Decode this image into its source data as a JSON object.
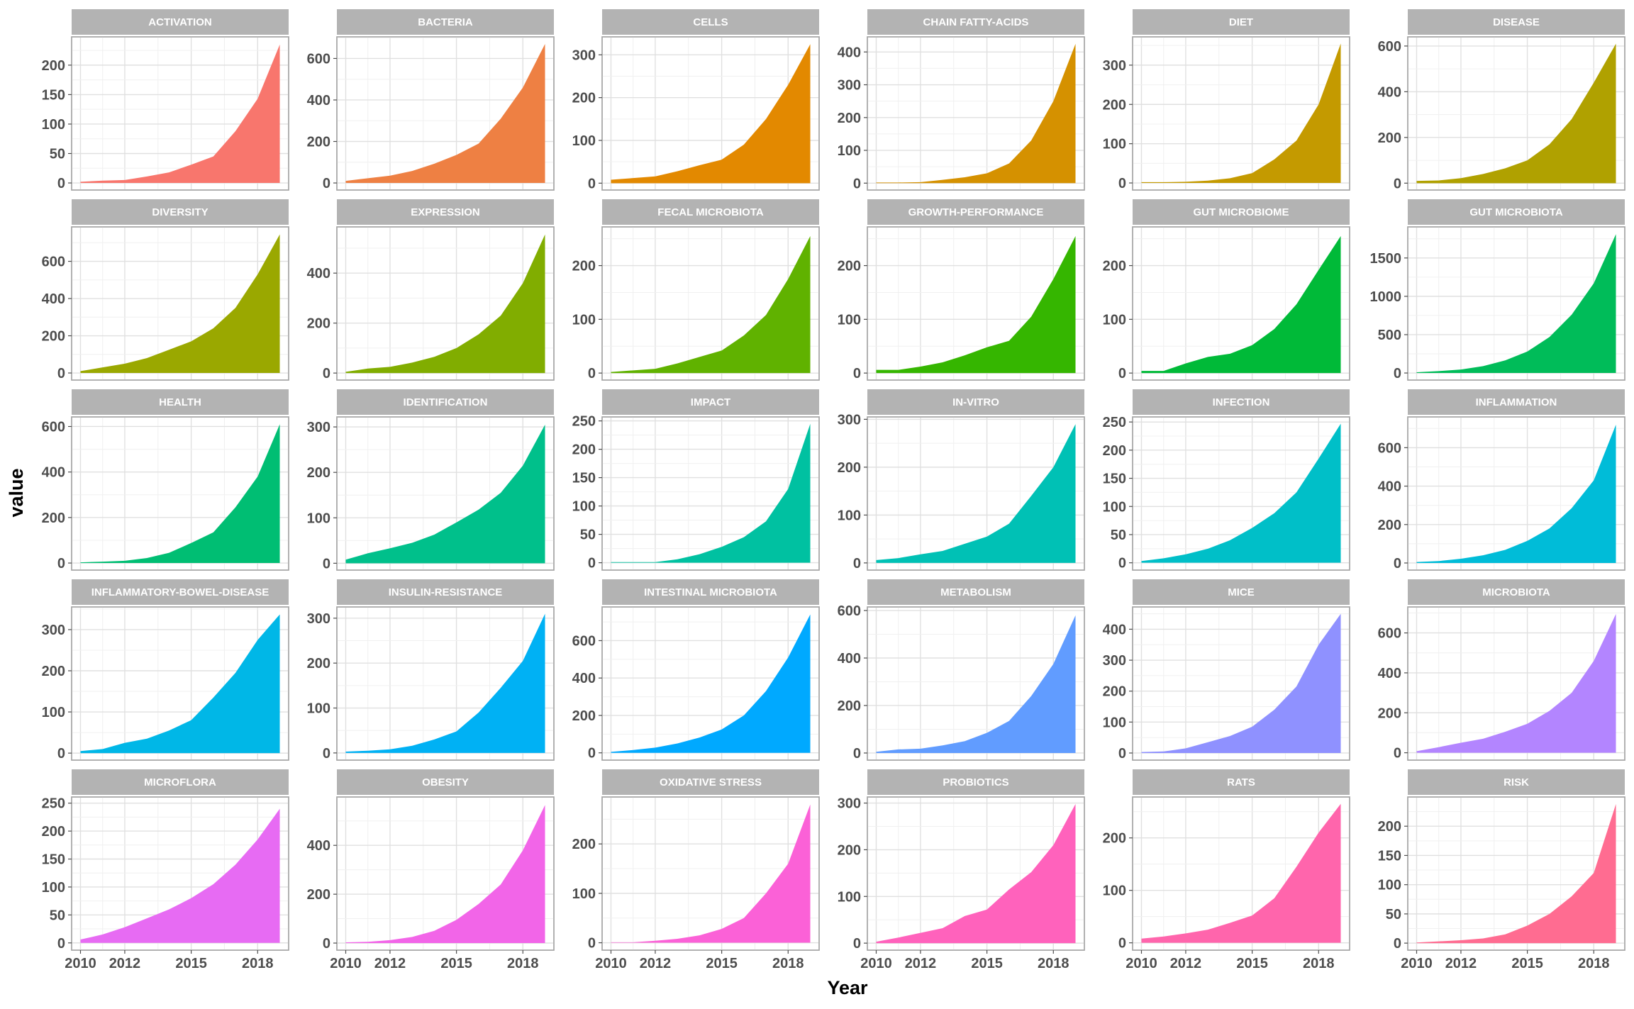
{
  "x_axis_title": "Year",
  "y_axis_title": "value",
  "chart_data": {
    "type": "area",
    "xlabel": "Year",
    "ylabel": "value",
    "x": [
      2010,
      2011,
      2012,
      2013,
      2014,
      2015,
      2016,
      2017,
      2018,
      2019
    ],
    "x_ticks": [
      2010,
      2012,
      2015,
      2018
    ],
    "xlim": [
      2009.6,
      2019.4
    ],
    "grid": true,
    "facets": [
      {
        "title": "ACTIVATION",
        "color": "#F8766D",
        "y_ticks": [
          0,
          50,
          100,
          150,
          200
        ],
        "ylim": [
          -12,
          248
        ],
        "values": [
          2,
          4,
          5,
          11,
          18,
          31,
          45,
          88,
          143,
          235
        ]
      },
      {
        "title": "BACTERIA",
        "color": "#EE8043",
        "y_ticks": [
          0,
          200,
          400,
          600
        ],
        "ylim": [
          -34,
          704
        ],
        "values": [
          10,
          23,
          35,
          58,
          93,
          135,
          190,
          310,
          460,
          670
        ]
      },
      {
        "title": "CELLS",
        "color": "#E38900",
        "y_ticks": [
          0,
          100,
          200,
          300
        ],
        "ylim": [
          -16,
          342
        ],
        "values": [
          8,
          12,
          16,
          28,
          42,
          55,
          90,
          150,
          230,
          325
        ]
      },
      {
        "title": "CHAIN FATTY-ACIDS",
        "color": "#D59100",
        "y_ticks": [
          0,
          100,
          200,
          300,
          400
        ],
        "ylim": [
          -21,
          446
        ],
        "values": [
          2,
          2,
          3,
          10,
          18,
          30,
          60,
          130,
          250,
          425
        ]
      },
      {
        "title": "DIET",
        "color": "#C49A00",
        "y_ticks": [
          0,
          100,
          200,
          300
        ],
        "ylim": [
          -18,
          372
        ],
        "values": [
          2,
          2,
          3,
          6,
          12,
          25,
          60,
          108,
          200,
          355
        ]
      },
      {
        "title": "DISEASE",
        "color": "#B0A100",
        "y_ticks": [
          0,
          200,
          400,
          600
        ],
        "ylim": [
          -30,
          640
        ],
        "values": [
          10,
          12,
          22,
          40,
          65,
          100,
          170,
          280,
          440,
          610
        ]
      },
      {
        "title": "DIVERSITY",
        "color": "#9AA800",
        "y_ticks": [
          0,
          200,
          400,
          600
        ],
        "ylim": [
          -38,
          785
        ],
        "values": [
          10,
          30,
          50,
          80,
          125,
          170,
          240,
          350,
          530,
          745
        ]
      },
      {
        "title": "EXPRESSION",
        "color": "#81AD00",
        "y_ticks": [
          0,
          200,
          400
        ],
        "ylim": [
          -28,
          585
        ],
        "values": [
          5,
          18,
          25,
          42,
          65,
          100,
          155,
          230,
          360,
          555
        ]
      },
      {
        "title": "FECAL MICROBIOTA",
        "color": "#60B200",
        "y_ticks": [
          0,
          100,
          200
        ],
        "ylim": [
          -13,
          272
        ],
        "values": [
          2,
          5,
          8,
          18,
          30,
          42,
          70,
          108,
          175,
          255
        ]
      },
      {
        "title": "GROWTH-PERFORMANCE",
        "color": "#35B600",
        "y_ticks": [
          0,
          100,
          200
        ],
        "ylim": [
          -13,
          272
        ],
        "values": [
          6,
          6,
          12,
          20,
          33,
          48,
          60,
          105,
          175,
          255
        ]
      },
      {
        "title": "GUT MICROBIOME",
        "color": "#00BA38",
        "y_ticks": [
          0,
          100,
          200
        ],
        "ylim": [
          -13,
          272
        ],
        "values": [
          4,
          4,
          18,
          30,
          36,
          52,
          82,
          128,
          192,
          255
        ]
      },
      {
        "title": "GUT MICROBIOTA",
        "color": "#00BC59",
        "y_ticks": [
          0,
          500,
          1000,
          1500
        ],
        "ylim": [
          -92,
          1905
        ],
        "values": [
          10,
          25,
          45,
          90,
          165,
          280,
          470,
          760,
          1170,
          1810
        ]
      },
      {
        "title": "HEALTH",
        "color": "#00BE73",
        "y_ticks": [
          0,
          200,
          400,
          600
        ],
        "ylim": [
          -31,
          642
        ],
        "values": [
          3,
          6,
          10,
          22,
          45,
          88,
          135,
          245,
          380,
          610
        ]
      },
      {
        "title": "IDENTIFICATION",
        "color": "#00C08B",
        "y_ticks": [
          0,
          100,
          200,
          300
        ],
        "ylim": [
          -15,
          322
        ],
        "values": [
          8,
          22,
          33,
          45,
          63,
          90,
          118,
          155,
          215,
          305
        ]
      },
      {
        "title": "IMPACT",
        "color": "#00C1A1",
        "y_ticks": [
          0,
          50,
          100,
          150,
          200,
          250
        ],
        "ylim": [
          -13,
          257
        ],
        "values": [
          1,
          1,
          1,
          6,
          15,
          28,
          45,
          73,
          130,
          245
        ]
      },
      {
        "title": "IN-VITRO",
        "color": "#00C1B5",
        "y_ticks": [
          0,
          100,
          200,
          300
        ],
        "ylim": [
          -15,
          305
        ],
        "values": [
          6,
          10,
          18,
          25,
          40,
          55,
          82,
          140,
          200,
          290
        ]
      },
      {
        "title": "INFECTION",
        "color": "#00BFC8",
        "y_ticks": [
          0,
          50,
          100,
          150,
          200,
          250
        ],
        "ylim": [
          -13,
          259
        ],
        "values": [
          3,
          8,
          15,
          25,
          40,
          62,
          88,
          125,
          185,
          247
        ]
      },
      {
        "title": "INFLAMMATION",
        "color": "#00BCD8",
        "y_ticks": [
          0,
          200,
          400,
          600
        ],
        "ylim": [
          -37,
          760
        ],
        "values": [
          5,
          10,
          22,
          40,
          68,
          115,
          180,
          285,
          430,
          720
        ]
      },
      {
        "title": "INFLAMMATORY-BOWEL-DISEASE",
        "color": "#00B7E7",
        "y_ticks": [
          0,
          100,
          200,
          300
        ],
        "ylim": [
          -17,
          355
        ],
        "values": [
          5,
          10,
          25,
          35,
          55,
          80,
          135,
          195,
          275,
          337
        ]
      },
      {
        "title": "INSULIN-RESISTANCE",
        "color": "#00B1F4",
        "y_ticks": [
          0,
          100,
          200,
          300
        ],
        "ylim": [
          -16,
          325
        ],
        "values": [
          3,
          5,
          8,
          16,
          30,
          48,
          90,
          145,
          205,
          310
        ]
      },
      {
        "title": "INTESTINAL MICROBIOTA",
        "color": "#00A9FF",
        "y_ticks": [
          0,
          200,
          400,
          600
        ],
        "ylim": [
          -39,
          780
        ],
        "values": [
          5,
          15,
          28,
          50,
          82,
          125,
          200,
          330,
          510,
          740
        ]
      },
      {
        "title": "METABOLISM",
        "color": "#619CFF",
        "y_ticks": [
          0,
          200,
          400,
          600
        ],
        "ylim": [
          -30,
          615
        ],
        "values": [
          5,
          15,
          18,
          32,
          50,
          85,
          135,
          240,
          375,
          580
        ]
      },
      {
        "title": "MICE",
        "color": "#8F91FF",
        "y_ticks": [
          0,
          100,
          200,
          300,
          400
        ],
        "ylim": [
          -23,
          472
        ],
        "values": [
          3,
          5,
          15,
          35,
          55,
          85,
          140,
          215,
          350,
          450
        ]
      },
      {
        "title": "MICROBIOTA",
        "color": "#B385FF",
        "y_ticks": [
          0,
          200,
          400,
          600
        ],
        "ylim": [
          -37,
          730
        ],
        "values": [
          8,
          28,
          50,
          70,
          105,
          145,
          210,
          300,
          460,
          695
        ]
      },
      {
        "title": "MICROFLORA",
        "color": "#E76BF3",
        "y_ticks": [
          0,
          50,
          100,
          150,
          200,
          250
        ],
        "ylim": [
          -13,
          261
        ],
        "values": [
          6,
          15,
          28,
          44,
          60,
          80,
          105,
          140,
          185,
          240
        ]
      },
      {
        "title": "OBESITY",
        "color": "#F265E8",
        "y_ticks": [
          0,
          200,
          400
        ],
        "ylim": [
          -29,
          598
        ],
        "values": [
          3,
          5,
          12,
          25,
          50,
          95,
          160,
          240,
          380,
          565
        ]
      },
      {
        "title": "OXIDATIVE STRESS",
        "color": "#FB61D7",
        "y_ticks": [
          0,
          100,
          200
        ],
        "ylim": [
          -15,
          295
        ],
        "values": [
          1,
          1,
          4,
          8,
          15,
          28,
          50,
          100,
          160,
          280
        ]
      },
      {
        "title": "PROBIOTICS",
        "color": "#FF62BC",
        "y_ticks": [
          0,
          100,
          200,
          300
        ],
        "ylim": [
          -15,
          313
        ],
        "values": [
          3,
          12,
          22,
          32,
          58,
          72,
          115,
          152,
          210,
          298
        ]
      },
      {
        "title": "RATS",
        "color": "#FF65AC",
        "y_ticks": [
          0,
          100,
          200
        ],
        "ylim": [
          -14,
          278
        ],
        "values": [
          8,
          12,
          18,
          25,
          38,
          52,
          85,
          145,
          210,
          265
        ]
      },
      {
        "title": "RISK",
        "color": "#FF6C91",
        "y_ticks": [
          0,
          50,
          100,
          150,
          200
        ],
        "ylim": [
          -12,
          250
        ],
        "values": [
          1,
          3,
          5,
          8,
          15,
          30,
          50,
          80,
          120,
          238
        ]
      }
    ]
  }
}
